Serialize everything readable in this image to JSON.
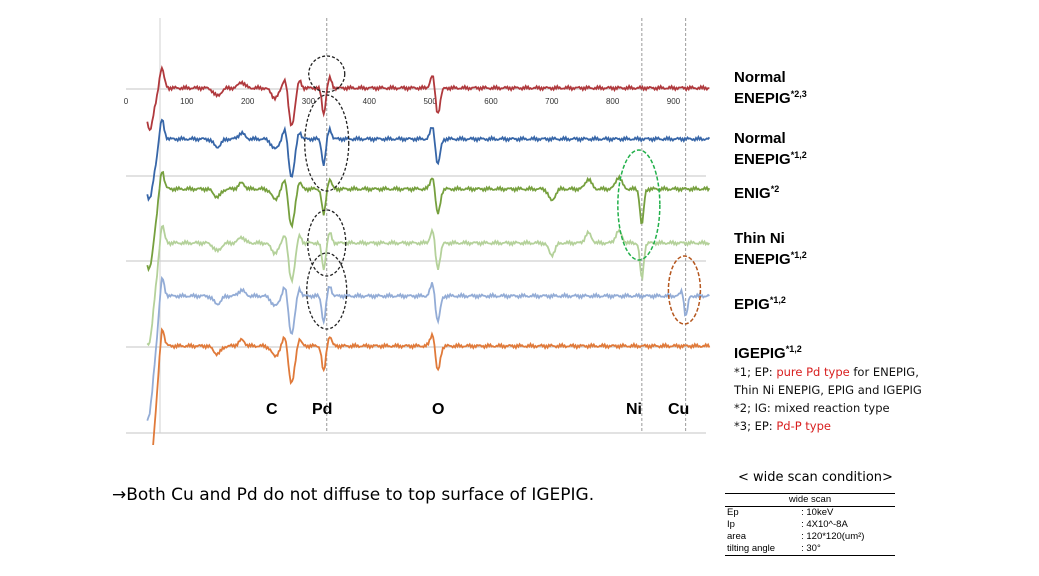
{
  "chart_data": {
    "type": "line",
    "x_ticks": [
      "0",
      "100",
      "200",
      "300",
      "400",
      "500",
      "600",
      "700",
      "800",
      "900"
    ],
    "xlim": [
      0,
      960
    ],
    "peak_markers": [
      {
        "label": "C",
        "x": 272
      },
      {
        "label": "Pd",
        "x": 330
      },
      {
        "label": "O",
        "x": 510
      },
      {
        "label": "Ni",
        "x": 848
      },
      {
        "label": "Cu",
        "x": 920
      }
    ],
    "series": [
      {
        "name_line1": "Normal",
        "name_line2": "ENEPIG",
        "sup": "*2,3",
        "color": "#b0393d"
      },
      {
        "name_line1": "Normal",
        "name_line2": "ENEPIG",
        "sup": "*1,2",
        "color": "#3766a8"
      },
      {
        "name_line1": "ENIG",
        "name_line2": "",
        "sup": "*2",
        "color": "#76a03e"
      },
      {
        "name_line1": "Thin Ni",
        "name_line2": "ENEPIG",
        "sup": "*1,2",
        "color": "#b4d19a"
      },
      {
        "name_line1": "EPIG",
        "name_line2": "",
        "sup": "*1,2",
        "color": "#93acd6"
      },
      {
        "name_line1": "IGEPIG",
        "name_line2": "",
        "sup": "*1,2",
        "color": "#e07a3a"
      }
    ],
    "highlights": [
      {
        "x": 330,
        "color": "#222222",
        "what": "Pd"
      },
      {
        "x": 848,
        "color": "#22b04a",
        "what": "Ni"
      },
      {
        "x": 918,
        "color": "#b5571f",
        "what": "Cu"
      }
    ]
  },
  "notes": {
    "n1_prefix": "*1; EP: ",
    "n1_red": "pure Pd type",
    "n1_suffix": " for ENEPIG,",
    "n1_line2": "Thin Ni ENEPIG, EPIG and IGEPIG",
    "n2": "*2; IG: mixed reaction type",
    "n3_prefix": "*3; EP: ",
    "n3_red": "Pd-P type"
  },
  "conclusion": "→Both Cu and Pd do not diffuse to top surface of IGEPIG.",
  "wide_scan": {
    "title": "< wide scan condition>",
    "header": "wide scan",
    "rows": [
      {
        "k": "Ep",
        "v": ": 10keV"
      },
      {
        "k": "Ip",
        "v": ": 4X10^-8A"
      },
      {
        "k": "area",
        "v": ": 120*120(um²)"
      },
      {
        "k": "tilting angle",
        "v": ": 30°"
      }
    ]
  }
}
